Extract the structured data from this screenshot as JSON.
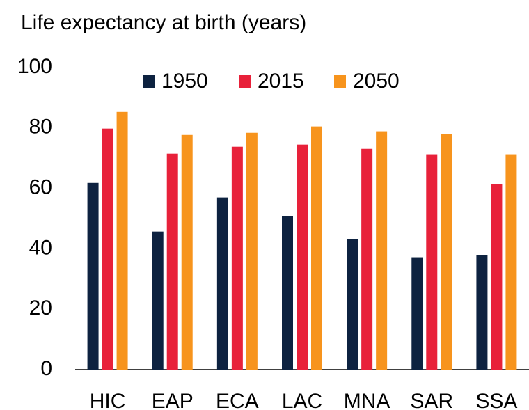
{
  "chart_data": {
    "type": "bar",
    "title": "Life expectancy at birth (years)",
    "categories": [
      "HIC",
      "EAP",
      "ECA",
      "LAC",
      "MNA",
      "SAR",
      "SSA"
    ],
    "series": [
      {
        "name": "1950",
        "color": "#0d2240",
        "values": [
          61.8,
          45.7,
          57,
          50.8,
          43.2,
          37.2,
          37.9
        ]
      },
      {
        "name": "2015",
        "color": "#e8213a",
        "values": [
          79.8,
          71.5,
          73.8,
          74.5,
          73.1,
          71.3,
          61.4
        ]
      },
      {
        "name": "2050",
        "color": "#f7941d",
        "values": [
          85.3,
          77.7,
          78.4,
          80.5,
          78.9,
          77.9,
          71.3
        ]
      }
    ],
    "ylim": [
      0,
      100
    ],
    "yticks": [
      0,
      20,
      40,
      60,
      80,
      100
    ],
    "grid": false,
    "legend": "top"
  }
}
